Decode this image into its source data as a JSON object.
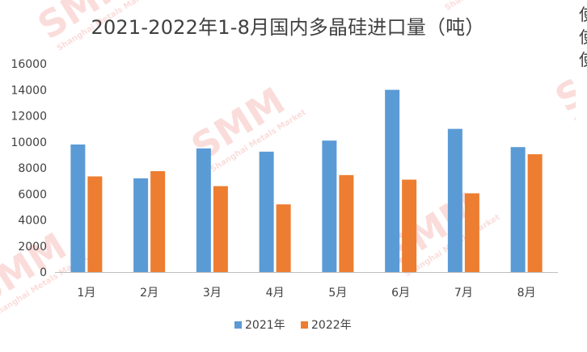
{
  "chart_data": {
    "type": "bar",
    "title": "2021-2022年1-8月国内多晶硅进口量（吨）",
    "categories": [
      "1月",
      "2月",
      "3月",
      "4月",
      "5月",
      "6月",
      "7月",
      "8月"
    ],
    "series": [
      {
        "name": "2021年",
        "color": "#5B9BD5",
        "values": [
          9800,
          7200,
          9500,
          9250,
          10100,
          14000,
          11000,
          9600
        ]
      },
      {
        "name": "2022年",
        "color": "#ED7D31",
        "values": [
          7350,
          7750,
          6600,
          5200,
          7450,
          7100,
          6050,
          9050
        ]
      }
    ],
    "ylim": [
      0,
      16000
    ],
    "yticks": [
      0,
      2000,
      4000,
      6000,
      8000,
      10000,
      12000,
      14000,
      16000
    ],
    "xlabel": "",
    "ylabel": "",
    "grid": false,
    "legend": "bottom"
  },
  "watermark": {
    "logo": "SMM",
    "subtitle": "Shanghai Metals Market",
    "color": "#E8493F"
  },
  "side_text": [
    "使",
    "使",
    "使"
  ]
}
